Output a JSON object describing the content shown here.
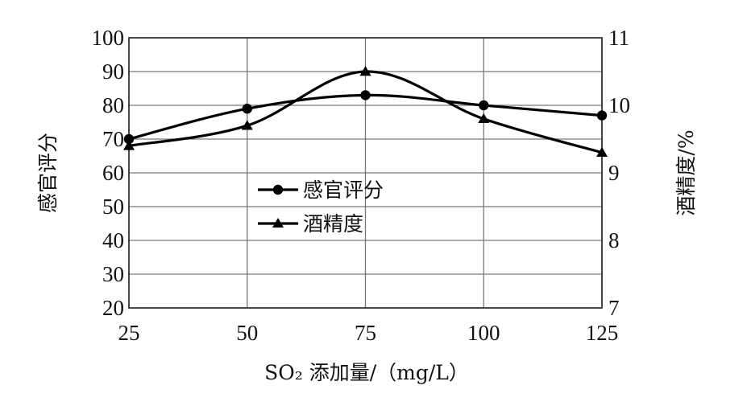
{
  "chart_data": {
    "type": "line",
    "xlabel": "SO₂ 添加量/（mg/L）",
    "ylabel_left": "感官评分",
    "ylabel_right": "酒精度/%",
    "x": [
      25,
      50,
      75,
      100,
      125
    ],
    "xlim": [
      25,
      125
    ],
    "ylim_left": [
      20,
      100
    ],
    "ylim_right": [
      7,
      11
    ],
    "yticks_left": [
      20,
      30,
      40,
      50,
      60,
      70,
      80,
      90,
      100
    ],
    "yticks_right": [
      7,
      8,
      9,
      10,
      11
    ],
    "grid": true,
    "legend_position": "center",
    "series": [
      {
        "name": "感官评分",
        "axis": "left",
        "marker": "circle",
        "values": [
          70,
          79,
          83,
          80,
          77
        ]
      },
      {
        "name": "酒精度",
        "axis": "right",
        "marker": "triangle",
        "values": [
          9.4,
          9.7,
          10.5,
          9.8,
          9.3
        ]
      }
    ]
  }
}
